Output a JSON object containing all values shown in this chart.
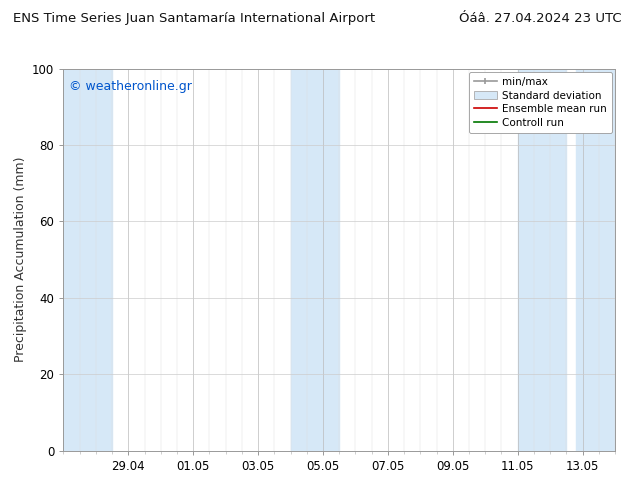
{
  "title_left": "ENS Time Series Juan Santamaría International Airport",
  "title_right": "Óáâ. 27.04.2024 23 UTC",
  "ylabel": "Precipitation Accumulation (mm)",
  "watermark": "© weatheronline.gr",
  "watermark_color": "#0055cc",
  "ylim": [
    0,
    100
  ],
  "yticks": [
    0,
    20,
    40,
    60,
    80,
    100
  ],
  "background_color": "#ffffff",
  "plot_bg_color": "#ffffff",
  "shaded_color": "#d6e8f7",
  "legend_labels": [
    "min/max",
    "Standard deviation",
    "Ensemble mean run",
    "Controll run"
  ],
  "x_tick_labels": [
    "29.04",
    "01.05",
    "03.05",
    "05.05",
    "07.05",
    "09.05",
    "11.05",
    "13.05"
  ],
  "x_tick_positions": [
    2,
    4,
    6,
    8,
    10,
    12,
    14,
    16
  ],
  "xlim": [
    0,
    17
  ],
  "shaded_bands": [
    [
      0.0,
      1.5
    ],
    [
      7.0,
      8.5
    ],
    [
      14.0,
      15.5
    ],
    [
      15.8,
      17.0
    ]
  ],
  "title_fontsize": 9.5,
  "tick_fontsize": 8.5,
  "ylabel_fontsize": 9,
  "legend_fontsize": 7.5,
  "watermark_fontsize": 9
}
